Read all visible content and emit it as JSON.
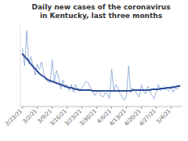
{
  "chart_data": {
    "type": "line",
    "title": "Daily new cases of the coronavirus\nin Kentucky, last three months",
    "categories": [
      "2/23/21",
      null,
      null,
      null,
      null,
      null,
      null,
      "3/2/21",
      null,
      null,
      null,
      null,
      null,
      null,
      "3/9/21",
      null,
      null,
      null,
      null,
      null,
      null,
      "3/16/21",
      null,
      null,
      null,
      null,
      null,
      null,
      "3/23/21",
      null,
      null,
      null,
      null,
      null,
      null,
      "3/30/21",
      null,
      null,
      null,
      null,
      null,
      null,
      "4/6/21",
      null,
      null,
      null,
      null,
      null,
      null,
      "4/13/21",
      null,
      null,
      null,
      null,
      null,
      null,
      "4/20/21",
      null,
      null,
      null,
      null,
      null,
      null,
      "4/27/21",
      null,
      null,
      null,
      null,
      null,
      null,
      "5/4/21",
      null,
      null,
      null,
      null
    ],
    "series": [
      {
        "color": "#8ca9d4",
        "values": [
          0.72,
          0.5,
          0.95,
          0.52,
          0.62,
          0.48,
          0.38,
          0.52,
          0.45,
          0.55,
          0.42,
          0.32,
          0.3,
          0.28,
          0.58,
          0.3,
          0.44,
          0.36,
          0.2,
          0.32,
          0.22,
          0.26,
          0.18,
          0.26,
          0.16,
          0.26,
          0.18,
          0.18,
          0.22,
          0.26,
          0.3,
          0.28,
          0.22,
          0.18,
          0.12,
          0.16,
          0.18,
          0.12,
          0.1,
          0.16,
          0.14,
          0.08,
          0.46,
          0.18,
          0.26,
          0.22,
          0.14,
          0.1,
          0.06,
          0.12,
          0.5,
          0.16,
          0.22,
          0.18,
          0.14,
          0.1,
          0.26,
          0.18,
          0.14,
          0.24,
          0.18,
          0.12,
          0.08,
          0.16,
          0.26,
          0.18,
          0.22,
          0.24,
          0.2,
          0.18,
          0.24,
          0.16,
          0.22,
          0.2,
          0.26
        ]
      },
      {
        "color": "#2e4d9b",
        "values": [
          0.65,
          0.62,
          0.59,
          0.56,
          0.52,
          0.49,
          0.46,
          0.43,
          0.4,
          0.38,
          0.36,
          0.34,
          0.32,
          0.31,
          0.3,
          0.29,
          0.28,
          0.27,
          0.26,
          0.25,
          0.24,
          0.23,
          0.22,
          0.22,
          0.21,
          0.2,
          0.2,
          0.19,
          0.19,
          0.19,
          0.19,
          0.19,
          0.19,
          0.18,
          0.18,
          0.18,
          0.18,
          0.18,
          0.18,
          0.18,
          0.18,
          0.18,
          0.18,
          0.18,
          0.18,
          0.18,
          0.18,
          0.18,
          0.18,
          0.18,
          0.18,
          0.18,
          0.19,
          0.19,
          0.19,
          0.19,
          0.19,
          0.19,
          0.19,
          0.19,
          0.19,
          0.2,
          0.2,
          0.2,
          0.2,
          0.21,
          0.21,
          0.21,
          0.22,
          0.22,
          0.22,
          0.23,
          0.23,
          0.24,
          0.24
        ]
      }
    ],
    "ylim": [
      -0.02,
      1.02
    ],
    "grid": false,
    "tick_labels": "x"
  }
}
